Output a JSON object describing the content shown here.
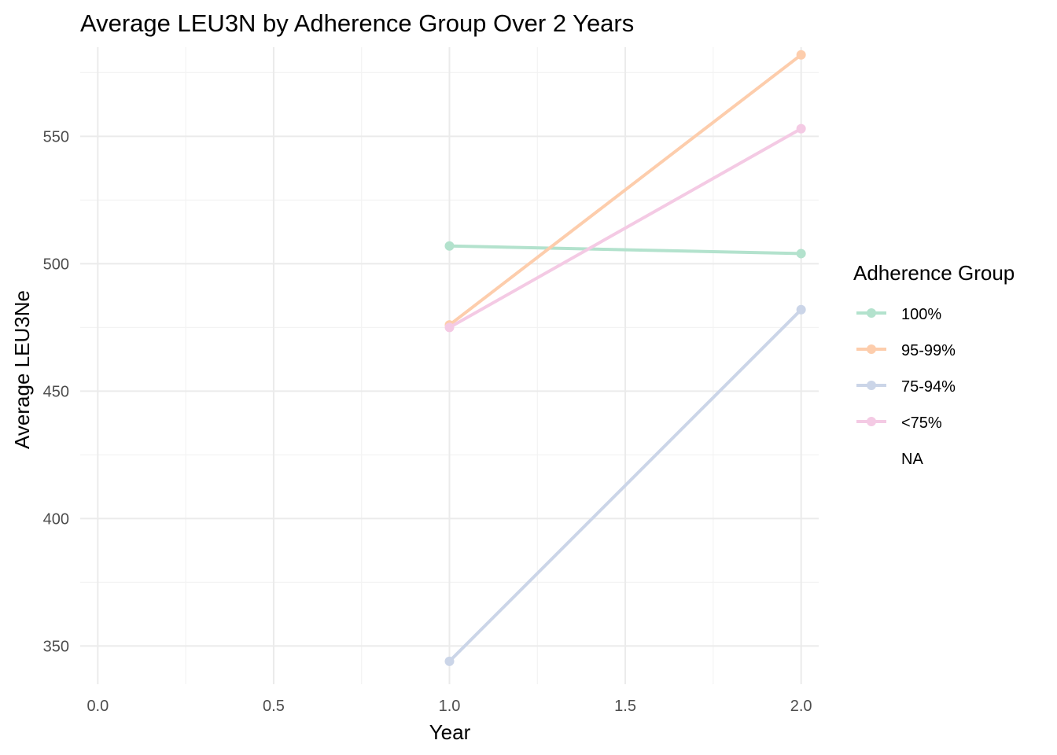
{
  "chart_data": {
    "type": "line",
    "title": "Average LEU3N by Adherence Group Over 2 Years",
    "xlabel": "Year",
    "ylabel": "Average LEU3Ne",
    "xlim": [
      -0.05,
      2.05
    ],
    "ylim": [
      335,
      585
    ],
    "x_ticks": [
      0.0,
      0.5,
      1.0,
      1.5,
      2.0
    ],
    "x_tick_labels": [
      "0.0",
      "0.5",
      "1.0",
      "1.5",
      "2.0"
    ],
    "x_minor_ticks": [
      0.25,
      0.75,
      1.25,
      1.75
    ],
    "y_ticks": [
      350,
      400,
      450,
      500,
      550
    ],
    "y_tick_labels": [
      "350",
      "400",
      "450",
      "500",
      "550"
    ],
    "y_minor_ticks": [
      375,
      425,
      475,
      525,
      575
    ],
    "grid": true,
    "legend": {
      "title": "Adherence Group",
      "position": "right"
    },
    "series": [
      {
        "name": "100%",
        "color": "#b3e2cd",
        "x": [
          1.0,
          2.0
        ],
        "values": [
          507,
          504
        ]
      },
      {
        "name": "95-99%",
        "color": "#fdcdac",
        "x": [
          1.0,
          2.0
        ],
        "values": [
          476,
          582
        ]
      },
      {
        "name": "75-94%",
        "color": "#cbd5e8",
        "x": [
          1.0,
          2.0
        ],
        "values": [
          344,
          482
        ]
      },
      {
        "name": "<75%",
        "color": "#f4cae4",
        "x": [
          1.0,
          2.0
        ],
        "values": [
          475,
          553
        ]
      },
      {
        "name": "NA",
        "color": "#ffffff",
        "x": [],
        "values": []
      }
    ]
  }
}
